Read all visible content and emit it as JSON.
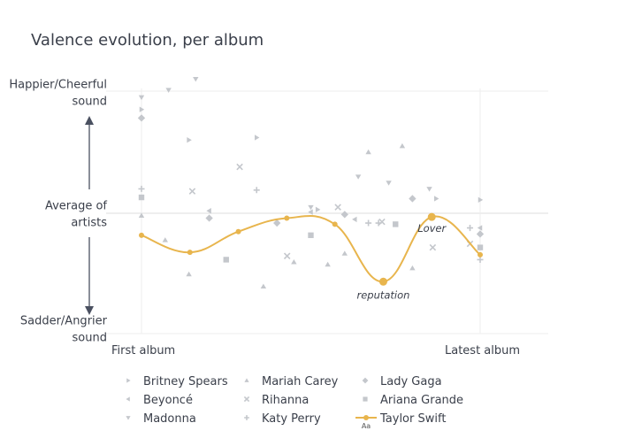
{
  "chart_data": {
    "type": "scatter",
    "title": "Valence evolution, per album",
    "y_axis": {
      "top_label": "Happier/Cheerful sound",
      "middle_label": "Average of artists",
      "bottom_label": "Sadder/Angrier sound"
    },
    "x_axis": {
      "left_label": "First album",
      "right_label": "Latest album"
    },
    "grid": true,
    "legend_position": "bottom",
    "colors": {
      "highlight": "#e8b54d",
      "others": "#c4c7cc",
      "grid": "#eeeeee",
      "text": "#3a3f4a"
    },
    "series": [
      {
        "name": "Britney Spears",
        "symbol": "triangle-right",
        "points": [
          [
            0.0,
            0.85
          ],
          [
            0.14,
            0.6
          ],
          [
            0.34,
            0.62
          ],
          [
            0.52,
            0.03
          ],
          [
            0.87,
            0.12
          ],
          [
            1.0,
            0.11
          ]
        ]
      },
      {
        "name": "Beyoncé",
        "symbol": "triangle-left",
        "points": [
          [
            0.2,
            0.02
          ],
          [
            0.5,
            0.01
          ],
          [
            0.63,
            -0.05
          ],
          [
            1.0,
            -0.12
          ]
        ]
      },
      {
        "name": "Madonna",
        "symbol": "triangle-down",
        "points": [
          [
            0.0,
            0.95
          ],
          [
            0.08,
            1.01
          ],
          [
            0.16,
            1.1
          ],
          [
            0.5,
            0.05
          ],
          [
            0.64,
            0.3
          ],
          [
            0.73,
            0.25
          ],
          [
            0.85,
            0.2
          ]
        ]
      },
      {
        "name": "Mariah Carey",
        "symbol": "triangle-up",
        "points": [
          [
            0.0,
            -0.02
          ],
          [
            0.07,
            -0.22
          ],
          [
            0.14,
            -0.5
          ],
          [
            0.36,
            -0.6
          ],
          [
            0.45,
            -0.4
          ],
          [
            0.55,
            -0.42
          ],
          [
            0.6,
            -0.33
          ],
          [
            0.67,
            0.5
          ],
          [
            0.77,
            0.55
          ],
          [
            0.8,
            -0.45
          ]
        ]
      },
      {
        "name": "Rihanna",
        "symbol": "x",
        "points": [
          [
            0.15,
            0.18
          ],
          [
            0.29,
            0.38
          ],
          [
            0.43,
            -0.35
          ],
          [
            0.58,
            0.05
          ],
          [
            0.71,
            -0.07
          ],
          [
            0.86,
            -0.28
          ],
          [
            0.97,
            -0.25
          ]
        ]
      },
      {
        "name": "Katy Perry",
        "symbol": "cross",
        "points": [
          [
            0.0,
            0.2
          ],
          [
            0.34,
            0.19
          ],
          [
            0.67,
            -0.08
          ],
          [
            0.7,
            -0.08
          ],
          [
            0.97,
            -0.12
          ],
          [
            1.0,
            -0.38
          ]
        ]
      },
      {
        "name": "Lady Gaga",
        "symbol": "diamond",
        "points": [
          [
            0.0,
            0.78
          ],
          [
            0.2,
            -0.04
          ],
          [
            0.4,
            -0.08
          ],
          [
            0.6,
            -0.01
          ],
          [
            0.8,
            0.12
          ],
          [
            1.0,
            -0.17
          ]
        ]
      },
      {
        "name": "Ariana Grande",
        "symbol": "square",
        "points": [
          [
            0.0,
            0.13
          ],
          [
            0.25,
            -0.38
          ],
          [
            0.5,
            -0.18
          ],
          [
            0.75,
            -0.09
          ],
          [
            1.0,
            -0.28
          ]
        ]
      },
      {
        "name": "Taylor Swift",
        "symbol": "circle-line",
        "highlight": true,
        "points": [
          [
            0.0,
            -0.18
          ],
          [
            0.143,
            -0.32
          ],
          [
            0.286,
            -0.15
          ],
          [
            0.429,
            -0.04
          ],
          [
            0.571,
            -0.09
          ],
          [
            0.714,
            -0.56
          ],
          [
            0.857,
            -0.03
          ],
          [
            1.0,
            -0.34
          ]
        ],
        "point_labels": [
          null,
          null,
          null,
          null,
          null,
          "reputation",
          "Lover",
          null
        ]
      }
    ]
  }
}
